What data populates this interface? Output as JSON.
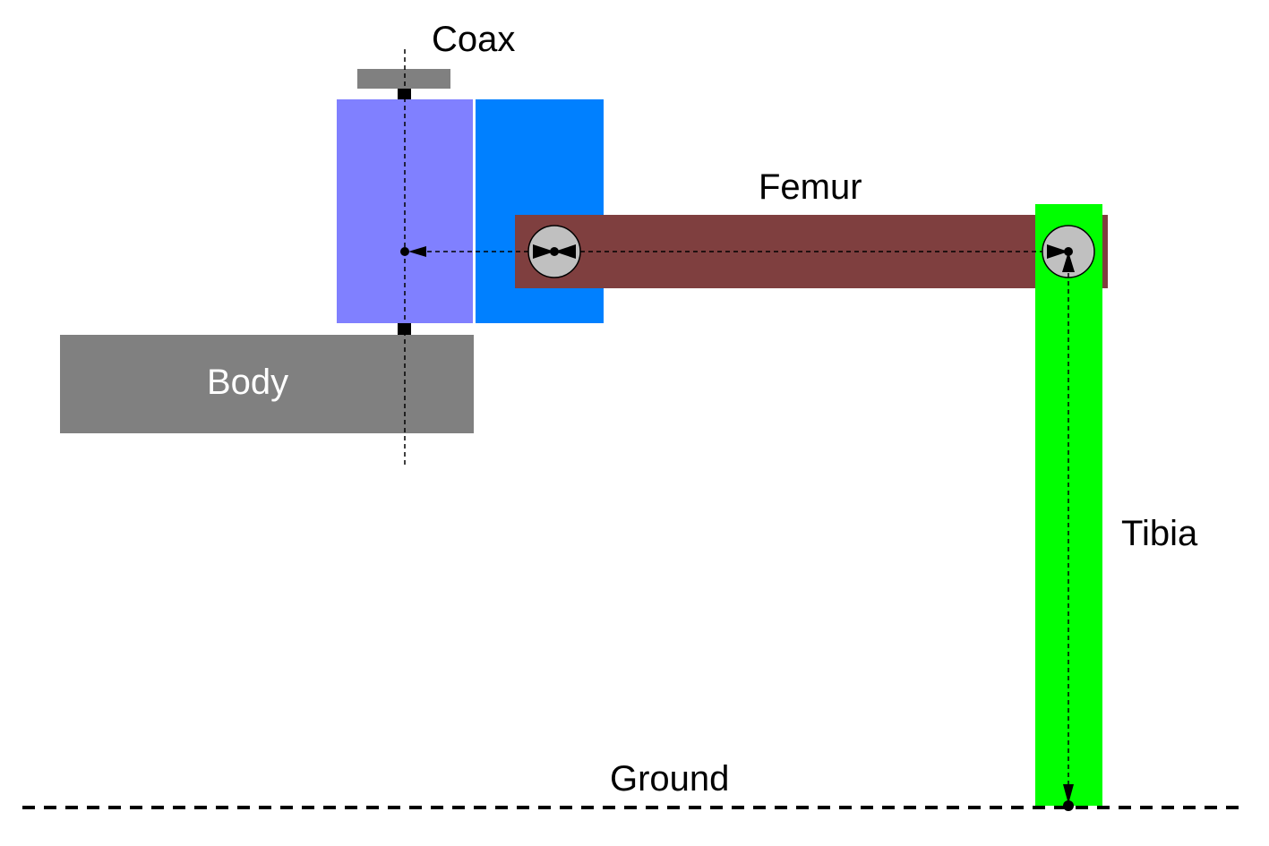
{
  "labels": {
    "coax": "Coax",
    "femur": "Femur",
    "tibia": "Tibia",
    "body": "Body",
    "ground": "Ground"
  },
  "colors": {
    "body": "#808080",
    "coax_cap": "#808080",
    "coax_block": "#8080ff",
    "coax_servo": "#0080ff",
    "femur": "#7f3f3f",
    "tibia": "#00ff00",
    "joint": "#c0c0c0",
    "line": "#000000"
  },
  "icons": {
    "femur_joint": "servo-joint-icon",
    "tibia_joint": "servo-joint-icon"
  }
}
